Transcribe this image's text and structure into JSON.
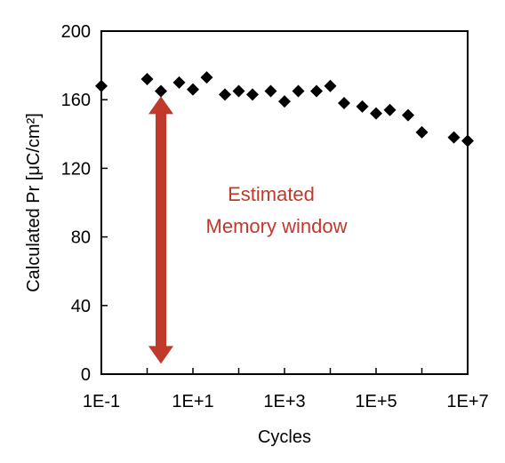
{
  "chart_data": {
    "type": "scatter",
    "x_scale": "log",
    "xlim": [
      0.1,
      10000000
    ],
    "ylim": [
      0,
      200
    ],
    "grid": false,
    "legend": "none",
    "xlabel": "Cycles",
    "ylabel": "Calculated Pr [μC/cm²]",
    "x_ticks": [
      0.1,
      10,
      1000,
      100000,
      10000000
    ],
    "x_tick_labels": [
      "1E-1",
      "1E+1",
      "1E+3",
      "1E+5",
      "1E+7"
    ],
    "y_ticks": [
      0,
      40,
      80,
      120,
      160,
      200
    ],
    "y_tick_labels": [
      "0",
      "40",
      "80",
      "120",
      "160",
      "200"
    ],
    "marker_color": "#000000",
    "series": [
      {
        "x": [
          0.1,
          1,
          2,
          5,
          10,
          20,
          50,
          100,
          200,
          500,
          1000,
          2000,
          5000,
          10000,
          20000,
          50000,
          100000,
          200000,
          500000,
          1000000,
          5000000,
          10000000
        ],
        "y": [
          168,
          172,
          165,
          170,
          166,
          173,
          163,
          165,
          163,
          165,
          159,
          165,
          165,
          168,
          158,
          156,
          152,
          154,
          151,
          141,
          138,
          136
        ]
      }
    ],
    "annotation": {
      "text_line1": "Estimated",
      "text_line2": "Memory window",
      "color": "#c0392b",
      "arrow_x": 2,
      "arrow_y_range": [
        6,
        162
      ]
    }
  }
}
